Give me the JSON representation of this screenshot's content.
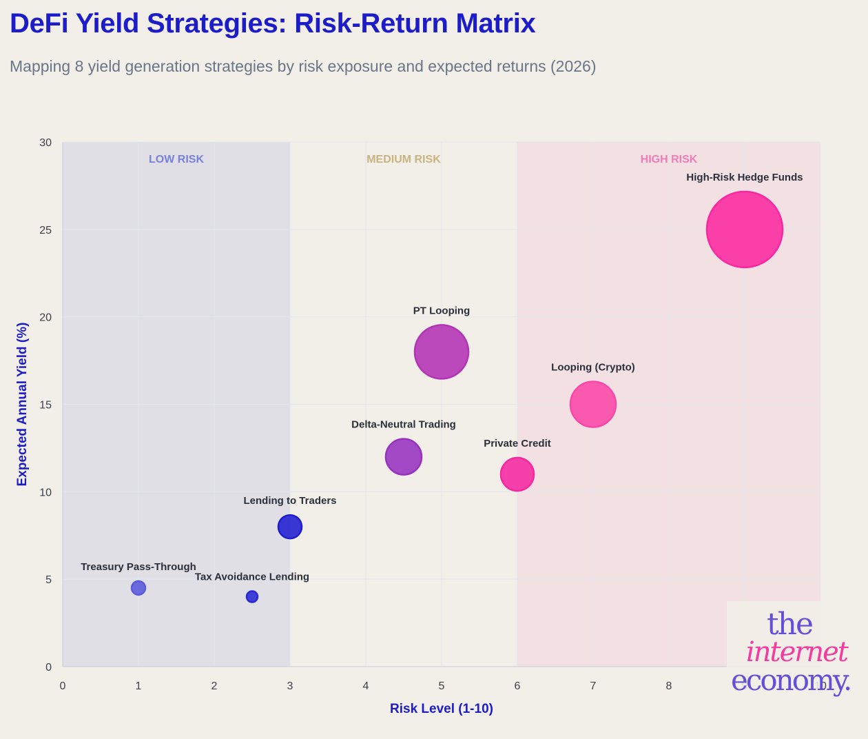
{
  "header": {
    "title": "DeFi Yield Strategies: Risk-Return Matrix",
    "subtitle": "Mapping 8 yield generation strategies by risk exposure and expected returns (2026)"
  },
  "logo": {
    "line1": "the",
    "line2": "internet",
    "line3": "economy."
  },
  "chart_data": {
    "type": "scatter",
    "xlabel": "Risk Level (1-10)",
    "ylabel": "Expected Annual Yield (%)",
    "xlim": [
      0,
      10
    ],
    "ylim": [
      0,
      30
    ],
    "x_ticks": [
      0,
      1,
      2,
      3,
      4,
      5,
      6,
      7,
      8,
      9,
      10
    ],
    "y_ticks": [
      0,
      5,
      10,
      15,
      20,
      25,
      30
    ],
    "grid": true,
    "legend": "none",
    "zones": [
      {
        "label": "LOW RISK",
        "from": 0,
        "to": 3,
        "fill": "#e0dfe6",
        "label_color": "#7a7fdc"
      },
      {
        "label": "MEDIUM RISK",
        "from": 3,
        "to": 6,
        "fill": "#f2efe8",
        "label_color": "#c9b380"
      },
      {
        "label": "HIGH RISK",
        "from": 6,
        "to": 10,
        "fill": "#f2e0e2",
        "label_color": "#f07cb8"
      }
    ],
    "points": [
      {
        "label": "Treasury Pass-Through",
        "x": 1,
        "y": 4.5,
        "size": 1,
        "color": "#5a5adc"
      },
      {
        "label": "Tax Avoidance Lending",
        "x": 2.5,
        "y": 4,
        "size": 0.8,
        "color": "#2828d4"
      },
      {
        "label": "Lending to Traders",
        "x": 3,
        "y": 8,
        "size": 1.7,
        "color": "#1e1ed0"
      },
      {
        "label": "Delta-Neutral Trading",
        "x": 4.5,
        "y": 12,
        "size": 2.6,
        "color": "#9632c0"
      },
      {
        "label": "PT Looping",
        "x": 5,
        "y": 18,
        "size": 3.9,
        "color": "#b432b4"
      },
      {
        "label": "Private Credit",
        "x": 6,
        "y": 11,
        "size": 2.4,
        "color": "#f528a0"
      },
      {
        "label": "Looping (Crypto)",
        "x": 7,
        "y": 15,
        "size": 3.3,
        "color": "#fa46a8"
      },
      {
        "label": "High-Risk Hedge Funds",
        "x": 9,
        "y": 25,
        "size": 5.5,
        "color": "#fa28a0"
      }
    ],
    "colors": {
      "axis_title": "#1c1cc8",
      "tick": "#3a3f4a",
      "point_label": "#2b2f3a",
      "grid": "#e2e6ee"
    }
  }
}
